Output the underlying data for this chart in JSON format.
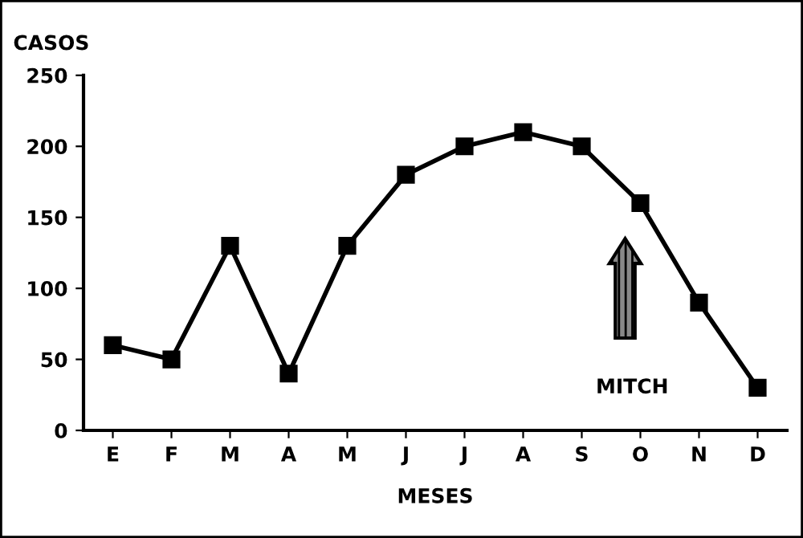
{
  "chart_data": {
    "type": "line",
    "xlabel": "MESES",
    "ylabel": "CASOS",
    "categories": [
      "E",
      "F",
      "M",
      "A",
      "M",
      "J",
      "J",
      "A",
      "S",
      "O",
      "N",
      "D"
    ],
    "values": [
      60,
      50,
      130,
      40,
      130,
      180,
      200,
      210,
      200,
      160,
      90,
      30
    ],
    "color": "#000000",
    "marker": "square",
    "line_style": "solid",
    "ylim": [
      0,
      250
    ],
    "yticks": [
      0,
      50,
      100,
      150,
      200,
      250
    ],
    "grid": false,
    "legend": false,
    "annotations": [
      "MITCH"
    ]
  }
}
